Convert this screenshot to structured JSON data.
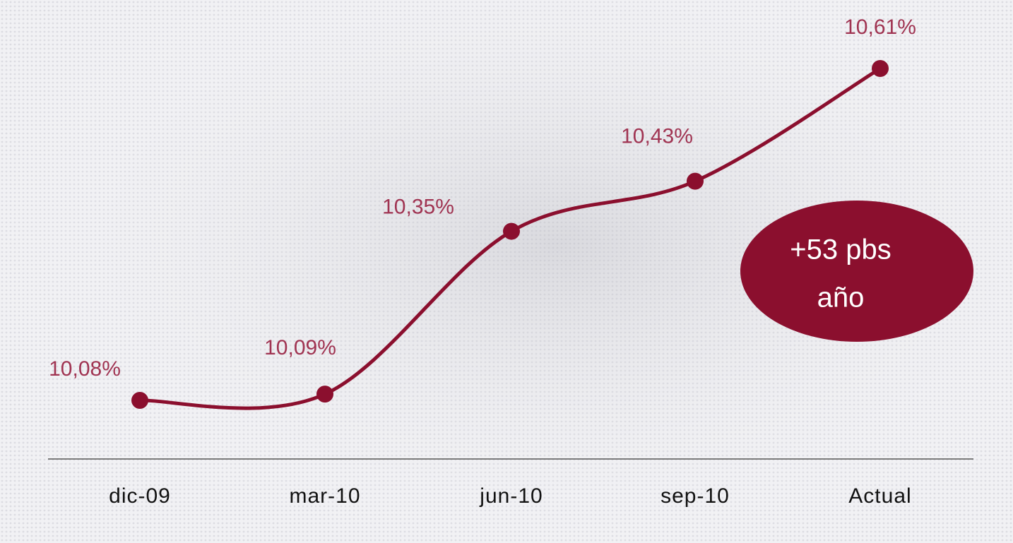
{
  "chart_data": {
    "type": "line",
    "categories": [
      "dic-09",
      "mar-10",
      "jun-10",
      "sep-10",
      "Actual"
    ],
    "values": [
      10.08,
      10.09,
      10.35,
      10.43,
      10.61
    ],
    "value_labels": [
      "10,08%",
      "10,09%",
      "10,35%",
      "10,43%",
      "10,61%"
    ],
    "color": "#8b0f2e",
    "annotation": [
      "+53 pbs",
      "año"
    ]
  }
}
